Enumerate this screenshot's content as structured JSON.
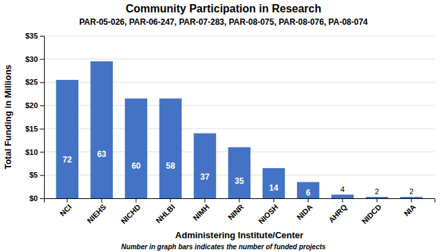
{
  "chart_data": {
    "type": "bar",
    "title": "Community Participation in Research",
    "subtitle": "PAR-05-026, PAR-06-247, PAR-07-283, PAR-08-075, PAR-08-076, PA-08-074",
    "x_label": "Administering Institute/Center",
    "y_label": "Total Funding in Millions",
    "footnote": "Number in graph bars indicates the number of funded projects",
    "categories": [
      "NCI",
      "NIEHS",
      "NICHD",
      "NHLBI",
      "NIMH",
      "NINR",
      "NIOSH",
      "NIDA",
      "AHRQ",
      "NIDCD",
      "NIA"
    ],
    "values": [
      25.5,
      29.5,
      21.5,
      21.5,
      14.0,
      11.0,
      6.5,
      3.5,
      0.8,
      0.3,
      0.3
    ],
    "projects": [
      72,
      63,
      60,
      58,
      37,
      35,
      14,
      6,
      4,
      2,
      2
    ],
    "color": "#4472C4",
    "ylim": [
      0,
      35
    ],
    "yticks": [
      {
        "value": 0,
        "label": "$0"
      },
      {
        "value": 5,
        "label": "$5"
      },
      {
        "value": 10,
        "label": "$10"
      },
      {
        "value": 15,
        "label": "$15"
      },
      {
        "value": 20,
        "label": "$20"
      },
      {
        "value": 25,
        "label": "$25"
      },
      {
        "value": 30,
        "label": "$30"
      },
      {
        "value": 35,
        "label": "$35"
      }
    ],
    "grid": true
  }
}
